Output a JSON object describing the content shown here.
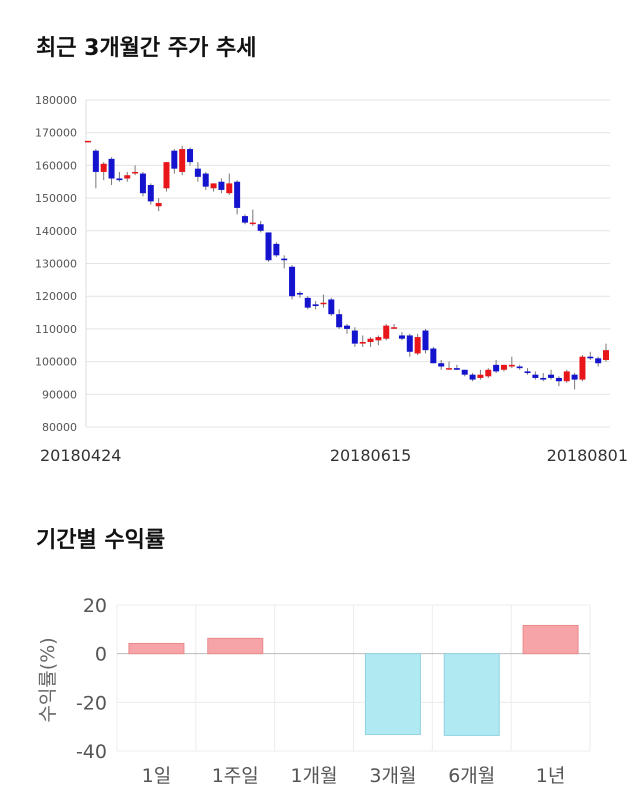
{
  "sections": {
    "price_title": "최근 3개월간 주가 추세",
    "returns_title": "기간별 수익률"
  },
  "chart_data": [
    {
      "type": "candlestick",
      "title": "최근 3개월간 주가 추세",
      "ylim": [
        80000,
        180000
      ],
      "yticks": [
        80000,
        90000,
        100000,
        110000,
        120000,
        130000,
        140000,
        150000,
        160000,
        170000,
        180000
      ],
      "xtick_labels": [
        {
          "index": 0,
          "label": "20180424"
        },
        {
          "index": 36,
          "label": "20180615"
        },
        {
          "index": 68,
          "label": "20180801"
        }
      ],
      "colors": {
        "up": "#e8161b",
        "down": "#1414cf",
        "wick": "#777777"
      },
      "candles": [
        [
          167500,
          167500,
          167000,
          167500
        ],
        [
          164500,
          165000,
          153000,
          158000
        ],
        [
          158000,
          161000,
          155500,
          160500
        ],
        [
          162000,
          162500,
          154000,
          156000
        ],
        [
          156000,
          158000,
          155000,
          155500
        ],
        [
          156000,
          158000,
          155000,
          157000
        ],
        [
          158000,
          160000,
          157000,
          158000
        ],
        [
          157500,
          158000,
          150500,
          151500
        ],
        [
          154000,
          154500,
          148000,
          149000
        ],
        [
          147500,
          150000,
          146000,
          148500
        ],
        [
          153000,
          161000,
          152000,
          161000
        ],
        [
          164500,
          165000,
          157500,
          159000
        ],
        [
          158000,
          166000,
          157000,
          165000
        ],
        [
          165000,
          165500,
          160000,
          161000
        ],
        [
          159000,
          161000,
          155000,
          156500
        ],
        [
          157500,
          158000,
          152500,
          153500
        ],
        [
          153000,
          154500,
          152000,
          154500
        ],
        [
          155000,
          156000,
          151500,
          152500
        ],
        [
          151500,
          157500,
          151000,
          154500
        ],
        [
          155000,
          155500,
          145000,
          147000
        ],
        [
          144500,
          145000,
          142000,
          142500
        ],
        [
          142500,
          146500,
          141500,
          142500
        ],
        [
          142000,
          143000,
          139500,
          140000
        ],
        [
          139500,
          139500,
          130500,
          131000
        ],
        [
          136000,
          136500,
          132000,
          132500
        ],
        [
          131500,
          132500,
          128500,
          131000
        ],
        [
          129000,
          129500,
          119000,
          120000
        ],
        [
          121000,
          121500,
          119500,
          120500
        ],
        [
          119500,
          120000,
          116000,
          116500
        ],
        [
          117500,
          118500,
          116000,
          117000
        ],
        [
          118000,
          120500,
          116500,
          118000
        ],
        [
          119000,
          119500,
          114000,
          114500
        ],
        [
          114500,
          116000,
          110000,
          110500
        ],
        [
          111000,
          111500,
          108500,
          110000
        ],
        [
          109500,
          110500,
          104500,
          105500
        ],
        [
          105500,
          108000,
          104500,
          106000
        ],
        [
          106000,
          107500,
          104500,
          107000
        ],
        [
          106500,
          108000,
          105000,
          107500
        ],
        [
          107000,
          111500,
          106500,
          111000
        ],
        [
          110500,
          111500,
          110000,
          110500
        ],
        [
          108000,
          109000,
          106500,
          107000
        ],
        [
          108000,
          108500,
          101500,
          103000
        ],
        [
          102500,
          108500,
          102000,
          107500
        ],
        [
          109500,
          110000,
          102500,
          103500
        ],
        [
          104000,
          104500,
          99500,
          99500
        ],
        [
          99500,
          100500,
          97500,
          98500
        ],
        [
          98000,
          100000,
          97500,
          98000
        ],
        [
          98000,
          99000,
          97500,
          97500
        ],
        [
          97500,
          97500,
          95500,
          96000
        ],
        [
          96000,
          96500,
          94000,
          94500
        ],
        [
          95000,
          97500,
          94500,
          96000
        ],
        [
          95500,
          98000,
          95000,
          97500
        ],
        [
          99000,
          100500,
          96500,
          97000
        ],
        [
          97500,
          99000,
          97000,
          99000
        ],
        [
          98500,
          101500,
          98000,
          99000
        ],
        [
          98500,
          99000,
          97500,
          98000
        ],
        [
          97000,
          98000,
          96000,
          96500
        ],
        [
          96000,
          97000,
          94500,
          95000
        ],
        [
          95000,
          96500,
          94000,
          94500
        ],
        [
          96000,
          97500,
          94500,
          95000
        ],
        [
          95000,
          95500,
          92500,
          94000
        ],
        [
          94000,
          97500,
          93500,
          97000
        ],
        [
          96000,
          96500,
          91500,
          94500
        ],
        [
          94500,
          102000,
          94000,
          101500
        ],
        [
          101500,
          103000,
          100500,
          101000
        ],
        [
          101000,
          101500,
          98500,
          99500
        ],
        [
          100500,
          105500,
          100000,
          103500
        ]
      ]
    },
    {
      "type": "bar",
      "title": "기간별 수익률",
      "ylabel": "수익률(%)",
      "ylim": [
        -40,
        20
      ],
      "yticks": [
        -40,
        -20,
        0,
        20
      ],
      "categories": [
        "1일",
        "1주일",
        "1개월",
        "3개월",
        "6개월",
        "1년"
      ],
      "values": [
        4.2,
        6.3,
        0,
        -33.2,
        -33.6,
        11.6
      ],
      "colors": {
        "positive": "#f6a4a7",
        "negative": "#b1e9f3"
      }
    }
  ]
}
